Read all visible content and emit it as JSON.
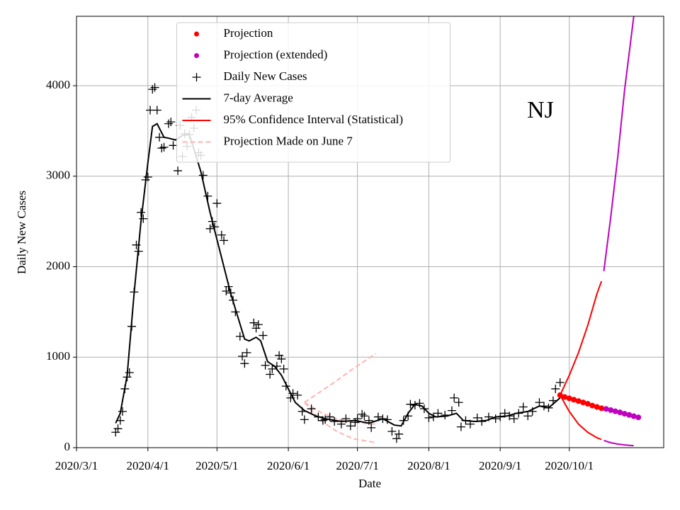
{
  "chart_data": {
    "type": "line",
    "xlabel": "Date",
    "ylabel": "Daily New Cases",
    "annotation": "NJ",
    "xlim": [
      "2020/3/1",
      "2020/11/11"
    ],
    "ylim": [
      0,
      4767
    ],
    "xticks": [
      "2020/3/1",
      "2020/4/1",
      "2020/5/1",
      "2020/6/1",
      "2020/7/1",
      "2020/8/1",
      "2020/9/1",
      "2020/10/1"
    ],
    "yticks": [
      0,
      1000,
      2000,
      3000,
      4000
    ],
    "grid": true,
    "legend": "upper center",
    "series": [
      {
        "name": "Projection",
        "color": "#ff0000",
        "style": "dot",
        "x": [
          "2020/9/27",
          "2020/9/29",
          "2020/10/1",
          "2020/10/3",
          "2020/10/5",
          "2020/10/7",
          "2020/10/9",
          "2020/10/11",
          "2020/10/13",
          "2020/10/15"
        ],
        "values": [
          580,
          560,
          545,
          530,
          515,
          500,
          485,
          465,
          450,
          435
        ]
      },
      {
        "name": "Projection (extended)",
        "color": "#bf00bf",
        "style": "dot",
        "x": [
          "2020/10/17",
          "2020/10/19",
          "2020/10/21",
          "2020/10/23",
          "2020/10/25",
          "2020/10/27",
          "2020/10/29",
          "2020/10/31"
        ],
        "values": [
          428,
          415,
          402,
          390,
          375,
          362,
          348,
          335
        ]
      },
      {
        "name": "Daily New Cases",
        "color": "#000000",
        "style": "plus",
        "x": [
          "2020/3/18",
          "2020/3/19",
          "2020/3/20",
          "2020/3/21",
          "2020/3/22",
          "2020/3/23",
          "2020/3/24",
          "2020/3/25",
          "2020/3/26",
          "2020/3/27",
          "2020/3/28",
          "2020/3/29",
          "2020/3/30",
          "2020/3/31",
          "2020/4/1",
          "2020/4/2",
          "2020/4/3",
          "2020/4/4",
          "2020/4/5",
          "2020/4/6",
          "2020/4/7",
          "2020/4/8",
          "2020/4/10",
          "2020/4/11",
          "2020/4/12",
          "2020/4/14",
          "2020/4/15",
          "2020/4/16",
          "2020/4/17",
          "2020/4/18",
          "2020/4/19",
          "2020/4/20",
          "2020/4/21",
          "2020/4/22",
          "2020/4/23",
          "2020/4/24",
          "2020/4/25",
          "2020/4/27",
          "2020/4/28",
          "2020/4/29",
          "2020/4/30",
          "2020/5/1",
          "2020/5/3",
          "2020/5/4",
          "2020/5/5",
          "2020/5/6",
          "2020/5/7",
          "2020/5/8",
          "2020/5/9",
          "2020/5/11",
          "2020/5/12",
          "2020/5/13",
          "2020/5/14",
          "2020/5/17",
          "2020/5/18",
          "2020/5/19",
          "2020/5/21",
          "2020/5/22",
          "2020/5/24",
          "2020/5/25",
          "2020/5/27",
          "2020/5/28",
          "2020/5/29",
          "2020/5/30",
          "2020/5/31",
          "2020/6/2",
          "2020/6/3",
          "2020/6/5",
          "2020/6/7",
          "2020/6/8",
          "2020/6/11",
          "2020/6/14",
          "2020/6/16",
          "2020/6/17",
          "2020/6/19",
          "2020/6/21",
          "2020/6/24",
          "2020/6/26",
          "2020/6/28",
          "2020/6/30",
          "2020/7/1",
          "2020/7/3",
          "2020/7/4",
          "2020/7/6",
          "2020/7/7",
          "2020/7/10",
          "2020/7/12",
          "2020/7/14",
          "2020/7/16",
          "2020/7/18",
          "2020/7/19",
          "2020/7/21",
          "2020/7/23",
          "2020/7/24",
          "2020/7/26",
          "2020/7/28",
          "2020/7/30",
          "2020/8/1",
          "2020/8/3",
          "2020/8/5",
          "2020/8/8",
          "2020/8/11",
          "2020/8/12",
          "2020/8/14",
          "2020/8/15",
          "2020/8/17",
          "2020/8/19",
          "2020/8/22",
          "2020/8/24",
          "2020/8/27",
          "2020/8/30",
          "2020/9/1",
          "2020/9/3",
          "2020/9/5",
          "2020/9/7",
          "2020/9/9",
          "2020/9/11",
          "2020/9/13",
          "2020/9/15",
          "2020/9/18",
          "2020/9/20",
          "2020/9/22",
          "2020/9/24",
          "2020/9/25",
          "2020/9/27"
        ],
        "values": [
          170,
          210,
          300,
          400,
          650,
          780,
          830,
          1340,
          1720,
          2240,
          2170,
          2600,
          2530,
          2960,
          2990,
          3730,
          3960,
          3980,
          3730,
          3430,
          3310,
          3320,
          3580,
          3600,
          3340,
          3060,
          3560,
          3220,
          3470,
          3330,
          3460,
          3650,
          3530,
          3730,
          3260,
          3230,
          3010,
          2780,
          2420,
          2500,
          2440,
          2700,
          2350,
          2290,
          1730,
          1780,
          1710,
          1630,
          1500,
          1230,
          1010,
          930,
          1050,
          1380,
          1320,
          1360,
          1240,
          910,
          810,
          870,
          900,
          1020,
          980,
          870,
          680,
          550,
          600,
          580,
          400,
          310,
          430,
          340,
          300,
          310,
          340,
          290,
          260,
          320,
          240,
          280,
          320,
          370,
          350,
          300,
          220,
          340,
          320,
          310,
          180,
          100,
          150,
          300,
          350,
          480,
          470,
          490,
          430,
          330,
          340,
          380,
          360,
          410,
          550,
          500,
          230,
          300,
          260,
          330,
          290,
          340,
          320,
          340,
          380,
          350,
          320,
          380,
          450,
          350,
          400,
          500,
          460,
          440,
          520,
          650,
          720
        ]
      },
      {
        "name": "7-day Average",
        "color": "#000000",
        "style": "line",
        "x": [
          "2020/3/18",
          "2020/3/20",
          "2020/3/23",
          "2020/3/26",
          "2020/3/29",
          "2020/4/1",
          "2020/4/3",
          "2020/4/5",
          "2020/4/8",
          "2020/4/10",
          "2020/4/13",
          "2020/4/16",
          "2020/4/19",
          "2020/4/21",
          "2020/4/24",
          "2020/4/28",
          "2020/5/1",
          "2020/5/4",
          "2020/5/7",
          "2020/5/10",
          "2020/5/13",
          "2020/5/15",
          "2020/5/18",
          "2020/5/20",
          "2020/5/23",
          "2020/5/26",
          "2020/5/29",
          "2020/6/1",
          "2020/6/4",
          "2020/6/8",
          "2020/6/13",
          "2020/6/17",
          "2020/6/24",
          "2020/6/30",
          "2020/7/6",
          "2020/7/12",
          "2020/7/17",
          "2020/7/20",
          "2020/7/23",
          "2020/7/26",
          "2020/7/29",
          "2020/8/1",
          "2020/8/4",
          "2020/8/9",
          "2020/8/13",
          "2020/8/16",
          "2020/8/21",
          "2020/8/26",
          "2020/8/30",
          "2020/9/4",
          "2020/9/8",
          "2020/9/13",
          "2020/9/18",
          "2020/9/22",
          "2020/9/27"
        ],
        "values": [
          270,
          380,
          800,
          1700,
          2500,
          3150,
          3550,
          3580,
          3430,
          3420,
          3400,
          3450,
          3460,
          3300,
          3050,
          2600,
          2300,
          2000,
          1700,
          1450,
          1200,
          1180,
          1220,
          1180,
          950,
          900,
          800,
          650,
          500,
          410,
          350,
          320,
          290,
          300,
          270,
          320,
          250,
          240,
          380,
          480,
          460,
          380,
          340,
          350,
          380,
          300,
          290,
          300,
          340,
          350,
          380,
          400,
          460,
          440,
          550
        ]
      },
      {
        "name": "95% Confidence Interval (Statistical)",
        "color": "#ff0000",
        "style": "line",
        "x": [
          "2020/9/27",
          "2020/10/1",
          "2020/10/5",
          "2020/10/9",
          "2020/10/13",
          "2020/10/15"
        ],
        "upper": [
          580,
          800,
          1050,
          1350,
          1700,
          1840
        ],
        "lower": [
          580,
          400,
          260,
          170,
          110,
          90
        ],
        "extended": {
          "color": "#bf00bf",
          "style": "line",
          "x": [
            "2020/10/16",
            "2020/10/19",
            "2020/10/22",
            "2020/10/25",
            "2020/10/29"
          ],
          "upper": [
            1950,
            2550,
            3200,
            3950,
            4767
          ],
          "lower": [
            80,
            55,
            40,
            30,
            22
          ]
        }
      },
      {
        "name": "Projection Made on June 7",
        "color": "#ffb3b3",
        "style": "dashed",
        "x": [
          "2020/6/8",
          "2020/6/15",
          "2020/6/22",
          "2020/6/29",
          "2020/7/9"
        ],
        "values": [
          500,
          390,
          320,
          280,
          260
        ],
        "upper": [
          500,
          620,
          740,
          870,
          1040
        ],
        "lower": [
          500,
          300,
          180,
          100,
          55
        ]
      }
    ]
  }
}
